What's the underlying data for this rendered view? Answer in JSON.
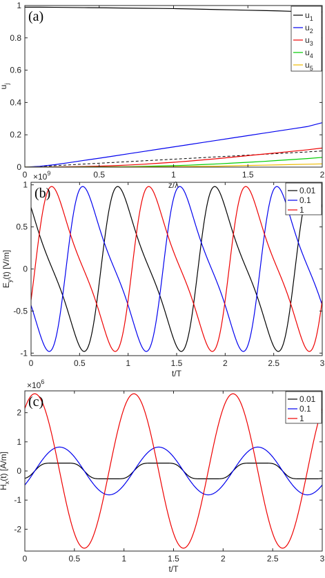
{
  "chart_data": [
    {
      "type": "line",
      "panel_label": "(a)",
      "xlabel": "z/λ",
      "ylabel": "u_j",
      "xlim": [
        0,
        2
      ],
      "ylim": [
        0,
        1
      ],
      "xticks": [
        "0",
        "0.5",
        "1",
        "1.5",
        "2"
      ],
      "yticks": [
        "0",
        "0.2",
        "0.4",
        "0.6",
        "0.8",
        "1"
      ],
      "grid": false,
      "legend_position": "top-right",
      "x": [
        0,
        0.1,
        0.2,
        0.3,
        0.4,
        0.5,
        0.6,
        0.7,
        0.8,
        0.9,
        1.0,
        1.1,
        1.2,
        1.3,
        1.4,
        1.5,
        1.6,
        1.7,
        1.8,
        1.9,
        2.0
      ],
      "series": [
        {
          "name": "u1",
          "legend_main": "u",
          "legend_sub": "1",
          "color": "#000000",
          "values": [
            0.99,
            0.99,
            0.989,
            0.988,
            0.987,
            0.986,
            0.985,
            0.984,
            0.983,
            0.982,
            0.981,
            0.979,
            0.977,
            0.975,
            0.973,
            0.971,
            0.969,
            0.967,
            0.964,
            0.962,
            0.96
          ]
        },
        {
          "name": "u2",
          "legend_main": "u",
          "legend_sub": "2",
          "color": "#0000ee",
          "values": [
            0.0,
            0.005,
            0.015,
            0.028,
            0.042,
            0.055,
            0.069,
            0.083,
            0.097,
            0.111,
            0.125,
            0.139,
            0.153,
            0.167,
            0.181,
            0.195,
            0.209,
            0.223,
            0.237,
            0.251,
            0.275
          ]
        },
        {
          "name": "u3",
          "legend_main": "u",
          "legend_sub": "3",
          "color": "#ee0000",
          "values": [
            0.0,
            0.0,
            0.001,
            0.002,
            0.004,
            0.006,
            0.009,
            0.013,
            0.018,
            0.024,
            0.03,
            0.037,
            0.045,
            0.053,
            0.062,
            0.071,
            0.08,
            0.089,
            0.098,
            0.107,
            0.118
          ]
        },
        {
          "name": "u4",
          "legend_main": "u",
          "legend_sub": "4",
          "color": "#00cc00",
          "values": [
            0.0,
            0.0,
            0.0,
            0.0,
            0.001,
            0.001,
            0.002,
            0.003,
            0.005,
            0.007,
            0.009,
            0.012,
            0.016,
            0.02,
            0.025,
            0.03,
            0.035,
            0.041,
            0.047,
            0.053,
            0.06
          ]
        },
        {
          "name": "u5",
          "legend_main": "u",
          "legend_sub": "5",
          "color": "#eebb00",
          "values": [
            0.0,
            0.0,
            0.0,
            0.0,
            0.0,
            0.0,
            0.001,
            0.001,
            0.002,
            0.002,
            0.003,
            0.004,
            0.005,
            0.006,
            0.008,
            0.01,
            0.012,
            0.014,
            0.016,
            0.018,
            0.02
          ]
        }
      ],
      "dashed_reference": [
        {
          "color": "#000000",
          "values": [
            1.0,
            1.0,
            1.0,
            1.0,
            1.0,
            1.0,
            1.0,
            1.0,
            1.0,
            1.0,
            1.0,
            1.0,
            1.0,
            1.0,
            1.0,
            1.0,
            1.0,
            1.0,
            1.0,
            1.0,
            1.0
          ]
        },
        {
          "color": "#000000",
          "values": [
            0.0,
            0.004,
            0.009,
            0.014,
            0.019,
            0.024,
            0.029,
            0.034,
            0.039,
            0.044,
            0.049,
            0.054,
            0.059,
            0.064,
            0.069,
            0.074,
            0.079,
            0.084,
            0.089,
            0.094,
            0.1
          ]
        }
      ]
    },
    {
      "type": "line",
      "panel_label": "(b)",
      "xlabel": "t/T",
      "ylabel": "E_y(t) [V/m]",
      "ylabel_main": "E",
      "ylabel_sub": "y",
      "ylabel_rest": "(t) [V/m]",
      "exponent_base": "×10",
      "exponent_power": "9",
      "xlim": [
        0,
        3
      ],
      "ylim": [
        -1.03,
        1.03
      ],
      "xticks": [
        "0",
        "0.5",
        "1",
        "1.5",
        "2",
        "2.5",
        "3"
      ],
      "yticks": [
        "-1",
        "-0.5",
        "0",
        "0.5",
        "1"
      ],
      "grid": false,
      "legend_position": "top-right",
      "series": [
        {
          "name": "0.01",
          "color": "#000000",
          "phase": -0.28
        },
        {
          "name": "0.1",
          "color": "#0000ee",
          "phase": 0.36
        },
        {
          "name": "1",
          "color": "#ee0000",
          "phase": 0.04
        }
      ]
    },
    {
      "type": "line",
      "panel_label": "(c)",
      "xlabel": "t/T",
      "ylabel": "H_x(t) [A/m]",
      "ylabel_main": "H",
      "ylabel_sub": "x",
      "ylabel_rest": "(t) [A/m]",
      "exponent_base": "×10",
      "exponent_power": "6",
      "xlim": [
        0,
        3
      ],
      "ylim": [
        -2.75,
        2.75
      ],
      "xticks": [
        "0",
        "0.5",
        "1",
        "1.5",
        "2",
        "2.5",
        "3"
      ],
      "yticks": [
        "-2",
        "-1",
        "0",
        "1",
        "2"
      ],
      "grid": false,
      "legend_position": "top-right",
      "series": [
        {
          "name": "0.01",
          "color": "#000000",
          "amplitude": 0.27,
          "phase": 0.1
        },
        {
          "name": "0.1",
          "color": "#0000ee",
          "amplitude": 0.82,
          "phase": 0.1
        },
        {
          "name": "1",
          "color": "#ee0000",
          "amplitude": 2.65,
          "phase": 0.85
        }
      ]
    }
  ]
}
